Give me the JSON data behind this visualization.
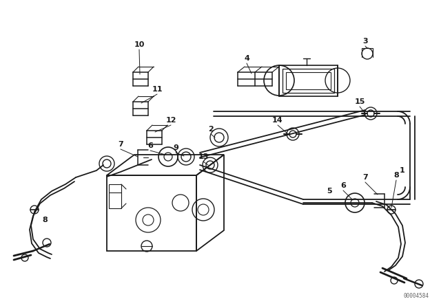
{
  "bg_color": "#ffffff",
  "line_color": "#1a1a1a",
  "fig_width": 6.4,
  "fig_height": 4.48,
  "dpi": 100,
  "watermark": "00004584",
  "border_color": "#cccccc"
}
